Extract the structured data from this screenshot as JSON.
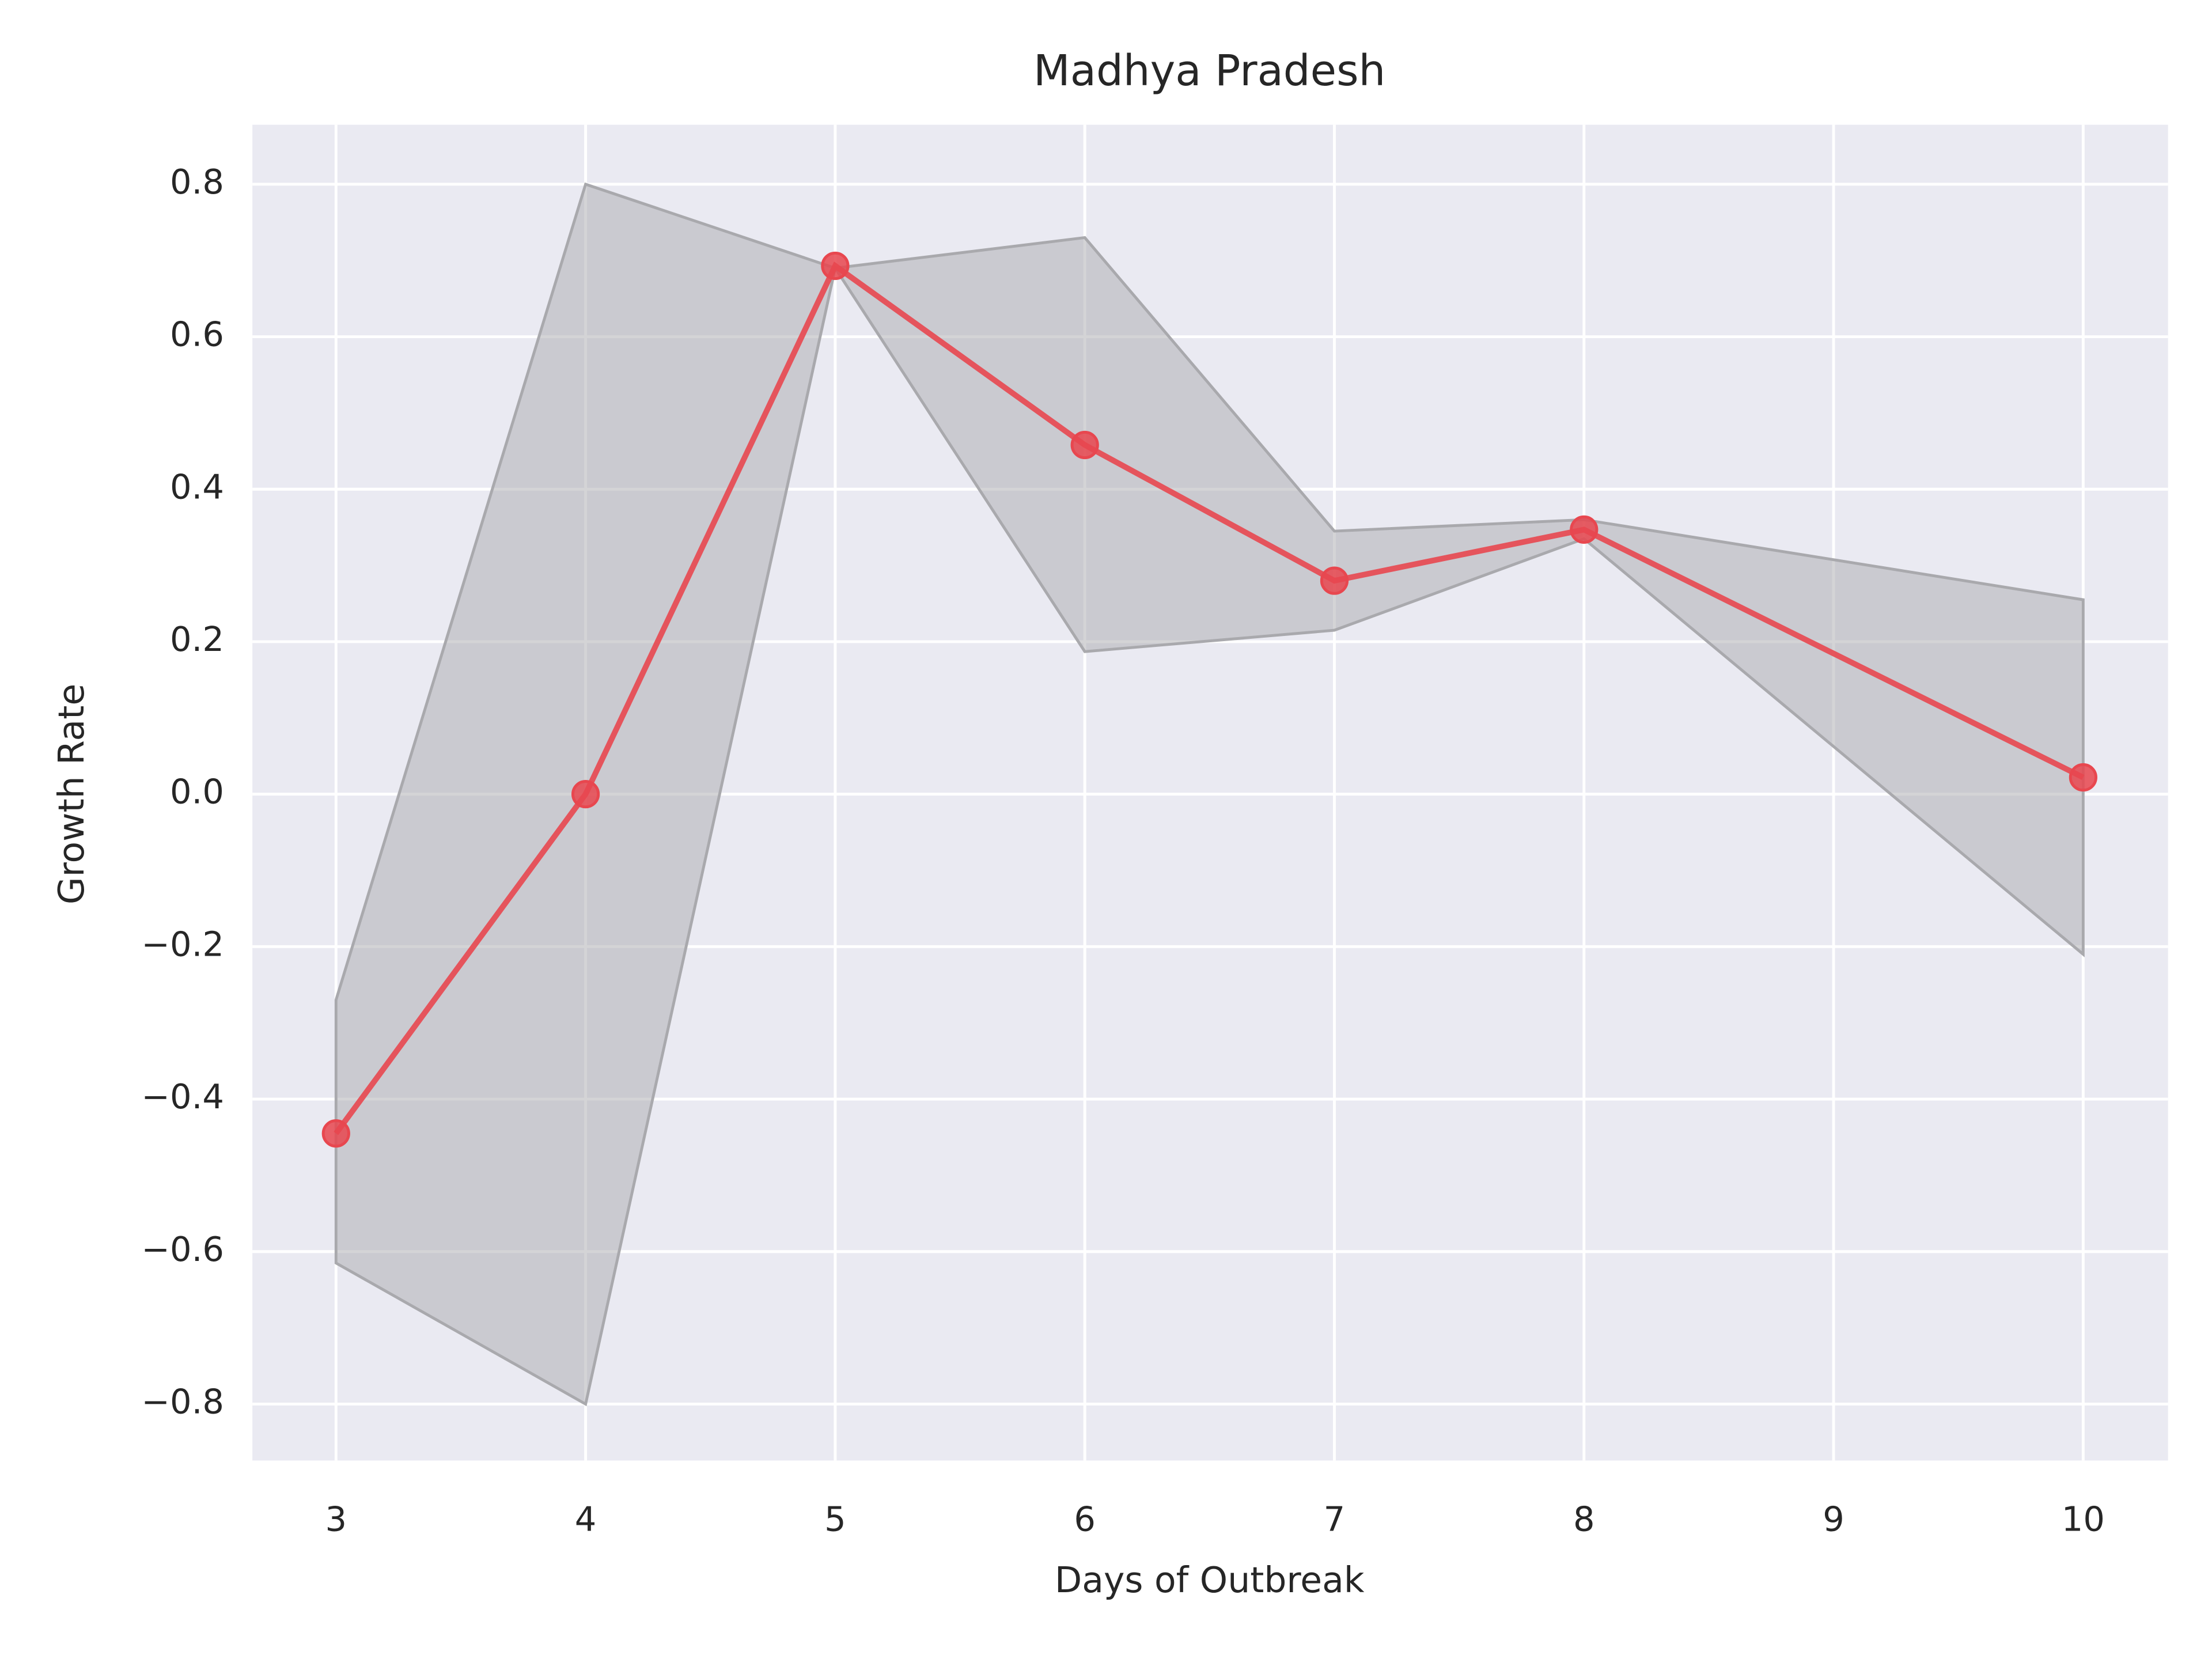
{
  "chart_data": {
    "type": "line",
    "title": "Madhya Pradesh",
    "x_label": "Days of Outbreak",
    "y_label": "Growth Rate",
    "x": [
      3,
      4,
      5,
      6,
      7,
      8,
      10
    ],
    "values": [
      -0.445,
      0.0,
      0.693,
      0.458,
      0.28,
      0.347,
      0.022
    ],
    "upper": [
      -0.27,
      0.8,
      0.69,
      0.73,
      0.345,
      0.36,
      0.255
    ],
    "lower": [
      -0.615,
      -0.8,
      0.69,
      0.187,
      0.215,
      0.335,
      -0.21
    ],
    "color": "#e8474f",
    "band_color": "#a9a9ad",
    "xlim": [
      2.665,
      10.34
    ],
    "ylim": [
      -0.874,
      0.878
    ],
    "xticks": [
      3,
      4,
      5,
      6,
      7,
      8,
      9,
      10
    ],
    "yticks": [
      {
        "value": -0.8,
        "label": "−0.8"
      },
      {
        "value": -0.6,
        "label": "−0.6"
      },
      {
        "value": -0.4,
        "label": "−0.4"
      },
      {
        "value": -0.2,
        "label": "−0.2"
      },
      {
        "value": 0.0,
        "label": "0.0"
      },
      0.2,
      0.4,
      0.6,
      0.8
    ],
    "grid": true
  }
}
